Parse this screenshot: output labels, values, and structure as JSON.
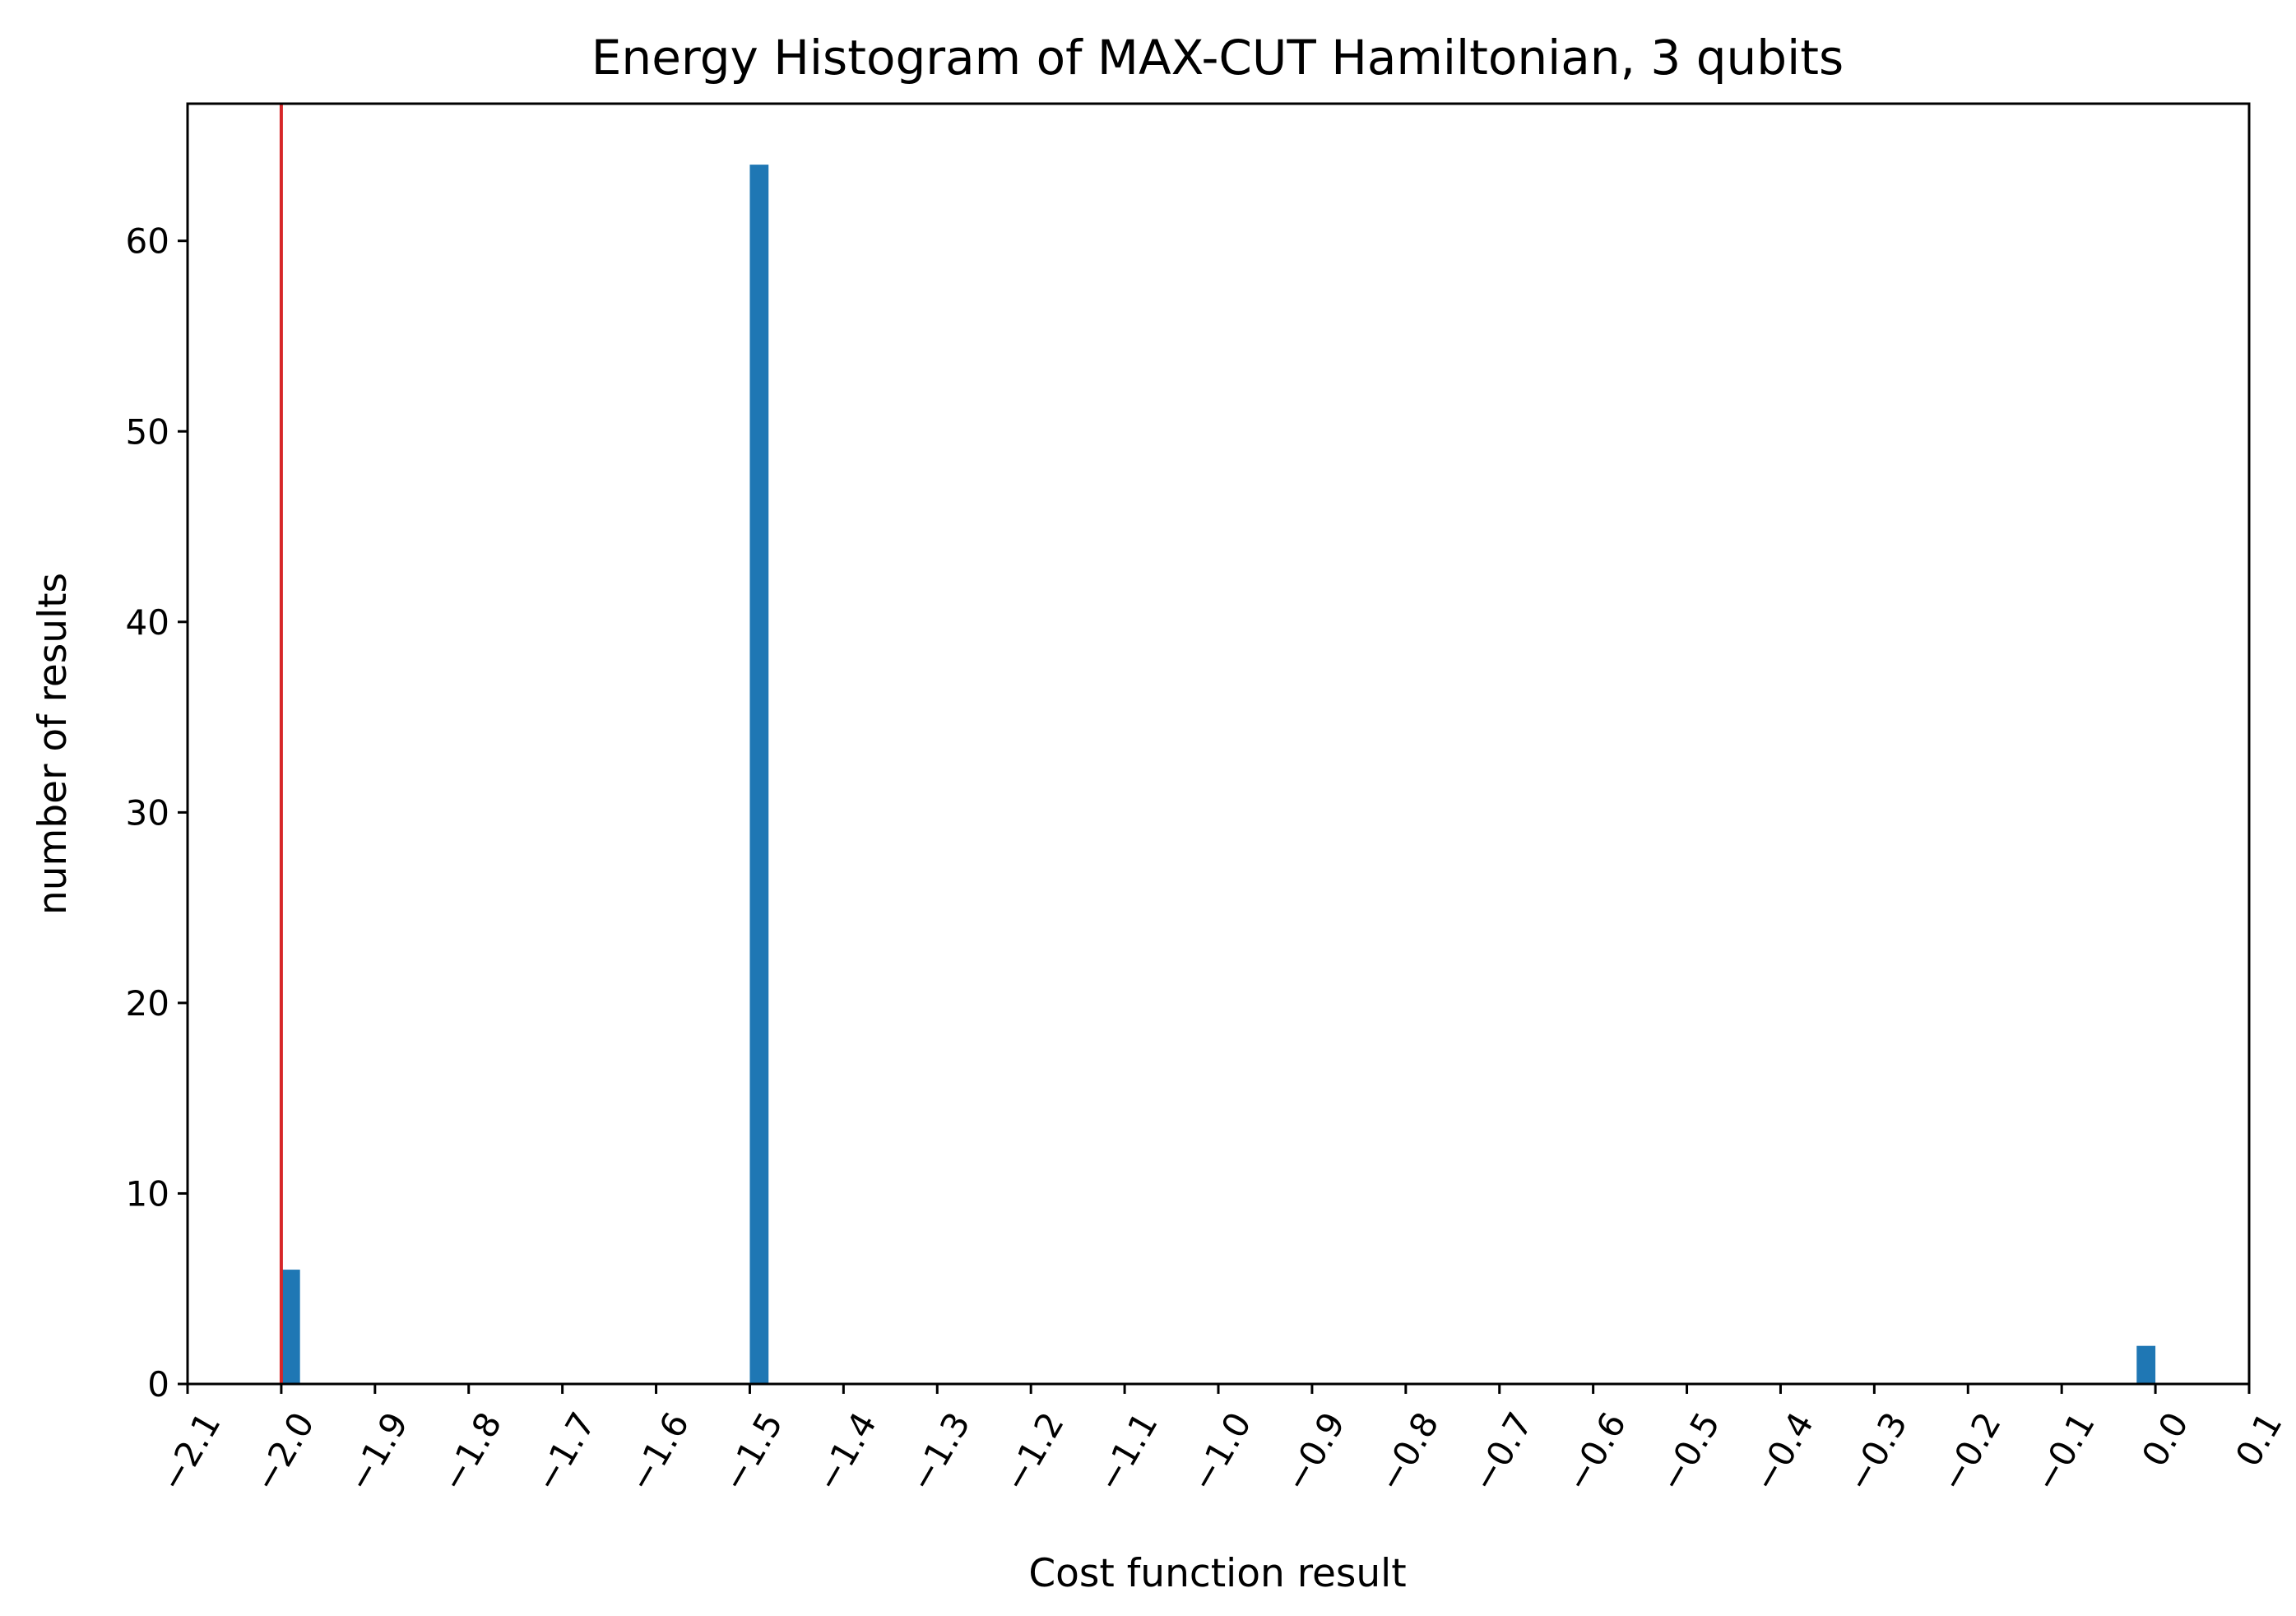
{
  "chart_data": {
    "type": "bar",
    "title": "Energy Histogram of MAX-CUT Hamiltonian, 3 qubits",
    "xlabel": "Cost function result",
    "ylabel": "number of results",
    "xlim": [
      -2.1,
      0.1
    ],
    "ylim": [
      0,
      67.2
    ],
    "x_ticks": [
      "−2.1",
      "−2.0",
      "−1.9",
      "−1.8",
      "−1.7",
      "−1.6",
      "−1.5",
      "−1.4",
      "−1.3",
      "−1.2",
      "−1.1",
      "−1.0",
      "−0.9",
      "−0.8",
      "−0.7",
      "−0.6",
      "−0.5",
      "−0.4",
      "−0.3",
      "−0.2",
      "−0.1",
      "0.0",
      "0.1"
    ],
    "y_ticks": [
      "0",
      "10",
      "20",
      "30",
      "40",
      "50",
      "60"
    ],
    "bars": [
      {
        "x_start": -2.0,
        "x_end": -1.98,
        "value": 6
      },
      {
        "x_start": -1.5,
        "x_end": -1.48,
        "value": 64
      },
      {
        "x_start": -0.02,
        "x_end": 0.0,
        "value": 2
      }
    ],
    "reference_line": {
      "x": -2.0,
      "color": "#d62728"
    },
    "bar_color": "#1f77b4",
    "grid": false
  }
}
